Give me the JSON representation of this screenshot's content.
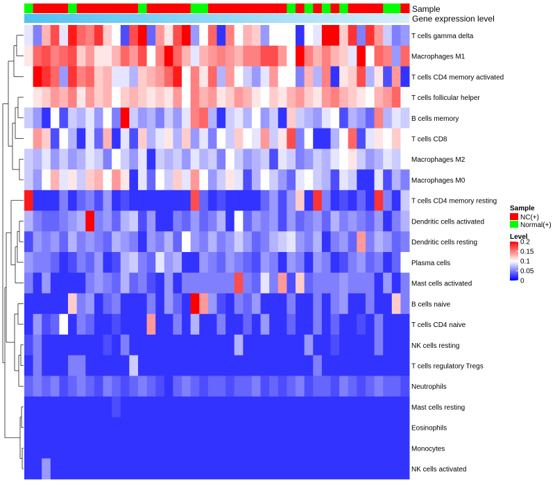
{
  "chart_data": {
    "type": "heatmap",
    "title": "",
    "annotation_tracks": [
      "Sample",
      "Gene expression level"
    ],
    "rows": [
      "T cells gamma delta",
      "Macrophages M1",
      "T cells CD4 memory activated",
      "T cells follicular helper",
      "B cells memory",
      "T cells CD8",
      "Macrophages M2",
      "Macrophages M0",
      "T cells CD4 memory resting",
      "Dendritic cells activated",
      "Dendritic cells resting",
      "Plasma cells",
      "Mast cells activated",
      "B cells naive",
      "T cells CD4 naive",
      "NK cells resting",
      "T cells regulatory  Tregs",
      "Neutrophils",
      "Mast cells resting",
      "Eosinophils",
      "Monocytes",
      "NK cells activated"
    ],
    "sample_groups": [
      "N",
      "C",
      "C",
      "C",
      "C",
      "N",
      "C",
      "C",
      "C",
      "C",
      "C",
      "C",
      "C",
      "N",
      "C",
      "C",
      "C",
      "C",
      "C",
      "N",
      "N",
      "C",
      "C",
      "C",
      "C",
      "C",
      "C",
      "C",
      "C",
      "C",
      "N",
      "C",
      "N",
      "C",
      "N",
      "C",
      "N",
      "C",
      "C",
      "C",
      "C",
      "N",
      "N",
      "C"
    ],
    "values": [
      [
        0.09,
        0.05,
        0.13,
        0.17,
        0.09,
        0.19,
        0.16,
        0.15,
        0.18,
        0.12,
        0.1,
        0.03,
        0.17,
        0.2,
        0.04,
        0.14,
        0.11,
        0.17,
        0.2,
        0.06,
        0.1,
        0.16,
        0.02,
        0.15,
        0.1,
        0.13,
        0.12,
        0.06,
        0.1,
        0.1,
        0.1,
        0.02,
        0.1,
        0.09,
        0.2,
        0.2,
        0.12,
        0.18,
        0.05,
        0.18,
        0.14,
        0.08,
        0.05,
        0.06
      ],
      [
        0.11,
        0.16,
        0.17,
        0.15,
        0.16,
        0.17,
        0.12,
        0.14,
        0.11,
        0.11,
        0.13,
        0.16,
        0.14,
        0.17,
        0.1,
        0.15,
        0.2,
        0.16,
        0.13,
        0.09,
        0.13,
        0.14,
        0.15,
        0.14,
        0.13,
        0.15,
        0.15,
        0.17,
        0.17,
        0.14,
        0.1,
        0.2,
        0.15,
        0.13,
        0.15,
        0.13,
        0.12,
        0.09,
        0.2,
        0.1,
        0.16,
        0.15,
        0.06,
        0.16
      ],
      [
        0.1,
        0.2,
        0.18,
        0.16,
        0.06,
        0.18,
        0.15,
        0.16,
        0.12,
        0.13,
        0.09,
        0.09,
        0.07,
        0.12,
        0.13,
        0.14,
        0.16,
        0.19,
        0.1,
        0.15,
        0.11,
        0.16,
        0.07,
        0.14,
        0.1,
        0.08,
        0.06,
        0.09,
        0.14,
        0.1,
        0.1,
        0.05,
        0.13,
        0.07,
        0.15,
        0.02,
        0.11,
        0.12,
        0.17,
        0.07,
        0.11,
        0.03,
        0.14,
        0.02
      ],
      [
        0.1,
        0.11,
        0.12,
        0.14,
        0.13,
        0.15,
        0.11,
        0.14,
        0.12,
        0.13,
        0.1,
        0.12,
        0.13,
        0.12,
        0.11,
        0.12,
        0.11,
        0.14,
        0.1,
        0.15,
        0.13,
        0.14,
        0.11,
        0.12,
        0.14,
        0.13,
        0.11,
        0.1,
        0.12,
        0.11,
        0.13,
        0.14,
        0.12,
        0.11,
        0.14,
        0.15,
        0.13,
        0.12,
        0.11,
        0.1,
        0.13,
        0.14,
        0.16,
        0.1
      ],
      [
        0.08,
        0.06,
        0.02,
        0.1,
        0.03,
        0.08,
        0.07,
        0.09,
        0.06,
        0.1,
        0.05,
        0.2,
        0.08,
        0.06,
        0.07,
        0.05,
        0.08,
        0.06,
        0.09,
        0.15,
        0.16,
        0.07,
        0.02,
        0.08,
        0.09,
        0.07,
        0.1,
        0.06,
        0.08,
        0.02,
        0.12,
        0.08,
        0.07,
        0.06,
        0.09,
        0.1,
        0.03,
        0.07,
        0.06,
        0.04,
        0.15,
        0.07,
        0.09,
        0.08
      ],
      [
        0.1,
        0.14,
        0.12,
        0.03,
        0.1,
        0.07,
        0.02,
        0.09,
        0.04,
        0.13,
        0.02,
        0.09,
        0.03,
        0.12,
        0.07,
        0.09,
        0.11,
        0.07,
        0.12,
        0.06,
        0.09,
        0.05,
        0.1,
        0.08,
        0.12,
        0.1,
        0.09,
        0.14,
        0.08,
        0.11,
        0.17,
        0.05,
        0.1,
        0.02,
        0.02,
        0.07,
        0.1,
        0.16,
        0.03,
        0.09,
        0.11,
        0.1,
        0.12,
        0.1
      ],
      [
        0.08,
        0.07,
        0.09,
        0.06,
        0.08,
        0.06,
        0.07,
        0.09,
        0.08,
        0.05,
        0.1,
        0.08,
        0.06,
        0.09,
        0.02,
        0.08,
        0.07,
        0.08,
        0.06,
        0.09,
        0.07,
        0.08,
        0.05,
        0.1,
        0.08,
        0.06,
        0.07,
        0.08,
        0.03,
        0.09,
        0.08,
        0.05,
        0.06,
        0.08,
        0.07,
        0.09,
        0.1,
        0.11,
        0.08,
        0.06,
        0.07,
        0.09,
        0.08,
        0.1
      ],
      [
        0.08,
        0.06,
        0.1,
        0.13,
        0.09,
        0.11,
        0.08,
        0.12,
        0.13,
        0.1,
        0.14,
        0.11,
        0.02,
        0.09,
        0.04,
        0.1,
        0.08,
        0.12,
        0.09,
        0.14,
        0.1,
        0.06,
        0.08,
        0.11,
        0.09,
        0.03,
        0.07,
        0.1,
        0.08,
        0.06,
        0.04,
        0.09,
        0.1,
        0.08,
        0.07,
        0.03,
        0.09,
        0.08,
        0.02,
        0.02,
        0.09,
        0.03,
        0.07,
        0.05
      ],
      [
        0.19,
        0.02,
        0.02,
        0.02,
        0.05,
        0.02,
        0.04,
        0.05,
        0.03,
        0.06,
        0.02,
        0.03,
        0.02,
        0.02,
        0.02,
        0.02,
        0.02,
        0.02,
        0.02,
        0.17,
        0.04,
        0.02,
        0.03,
        0.02,
        0.02,
        0.02,
        0.02,
        0.04,
        0.06,
        0.03,
        0.06,
        0.12,
        0.02,
        0.18,
        0.05,
        0.02,
        0.03,
        0.02,
        0.04,
        0.02,
        0.18,
        0.05,
        0.02,
        0.08
      ],
      [
        0.07,
        0.05,
        0.04,
        0.04,
        0.05,
        0.06,
        0.07,
        0.2,
        0.05,
        0.06,
        0.04,
        0.07,
        0.08,
        0.03,
        0.06,
        0.02,
        0.02,
        0.05,
        0.04,
        0.06,
        0.04,
        0.05,
        0.07,
        0.02,
        0.1,
        0.04,
        0.06,
        0.05,
        0.06,
        0.03,
        0.06,
        0.04,
        0.05,
        0.06,
        0.04,
        0.07,
        0.05,
        0.06,
        0.05,
        0.04,
        0.06,
        0.02,
        0.05,
        0.07
      ],
      [
        0.03,
        0.06,
        0.05,
        0.06,
        0.04,
        0.07,
        0.05,
        0.06,
        0.05,
        0.04,
        0.07,
        0.06,
        0.05,
        0.02,
        0.06,
        0.05,
        0.07,
        0.04,
        0.1,
        0.06,
        0.05,
        0.07,
        0.05,
        0.06,
        0.08,
        0.06,
        0.04,
        0.05,
        0.07,
        0.08,
        0.09,
        0.06,
        0.05,
        0.07,
        0.02,
        0.05,
        0.06,
        0.04,
        0.14,
        0.05,
        0.07,
        0.06,
        0.04,
        0.05
      ],
      [
        0.06,
        0.05,
        0.05,
        0.04,
        0.02,
        0.03,
        0.05,
        0.04,
        0.06,
        0.02,
        0.03,
        0.07,
        0.08,
        0.05,
        0.04,
        0.09,
        0.06,
        0.07,
        0.02,
        0.02,
        0.06,
        0.05,
        0.04,
        0.06,
        0.05,
        0.04,
        0.03,
        0.06,
        0.05,
        0.02,
        0.06,
        0.05,
        0.02,
        0.06,
        0.05,
        0.02,
        0.03,
        0.05,
        0.06,
        0.04,
        0.05,
        0.02,
        0.04,
        0.1
      ],
      [
        0.05,
        0.02,
        0.06,
        0.02,
        0.02,
        0.02,
        0.02,
        0.05,
        0.06,
        0.05,
        0.04,
        0.07,
        0.04,
        0.05,
        0.03,
        0.02,
        0.06,
        0.02,
        0.05,
        0.05,
        0.05,
        0.05,
        0.05,
        0.05,
        0.17,
        0.05,
        0.04,
        0.09,
        0.05,
        0.14,
        0.03,
        0.12,
        0.04,
        0.05,
        0.05,
        0.05,
        0.06,
        0.05,
        0.05,
        0.05,
        0.02,
        0.06,
        0.02,
        0.05
      ],
      [
        0.02,
        0.02,
        0.02,
        0.02,
        0.02,
        0.12,
        0.05,
        0.06,
        0.02,
        0.04,
        0.05,
        0.02,
        0.02,
        0.02,
        0.05,
        0.02,
        0.06,
        0.04,
        0.02,
        0.2,
        0.14,
        0.06,
        0.03,
        0.02,
        0.05,
        0.04,
        0.06,
        0.02,
        0.02,
        0.02,
        0.05,
        0.02,
        0.02,
        0.05,
        0.02,
        0.05,
        0.06,
        0.02,
        0.02,
        0.05,
        0.02,
        0.02,
        0.12,
        0.05
      ],
      [
        0.02,
        0.06,
        0.03,
        0.04,
        0.1,
        0.02,
        0.05,
        0.04,
        0.02,
        0.02,
        0.03,
        0.02,
        0.02,
        0.02,
        0.14,
        0.02,
        0.02,
        0.05,
        0.02,
        0.07,
        0.02,
        0.02,
        0.05,
        0.02,
        0.02,
        0.04,
        0.02,
        0.06,
        0.02,
        0.02,
        0.04,
        0.02,
        0.02,
        0.05,
        0.02,
        0.04,
        0.02,
        0.02,
        0.03,
        0.02,
        0.05,
        0.02,
        0.02,
        0.02
      ],
      [
        0.03,
        0.05,
        0.02,
        0.02,
        0.02,
        0.02,
        0.02,
        0.02,
        0.02,
        0.03,
        0.02,
        0.05,
        0.02,
        0.02,
        0.02,
        0.02,
        0.02,
        0.02,
        0.02,
        0.02,
        0.02,
        0.02,
        0.02,
        0.02,
        0.07,
        0.02,
        0.02,
        0.02,
        0.02,
        0.02,
        0.02,
        0.02,
        0.06,
        0.02,
        0.02,
        0.03,
        0.02,
        0.02,
        0.02,
        0.02,
        0.05,
        0.02,
        0.02,
        0.02
      ],
      [
        0.02,
        0.05,
        0.02,
        0.02,
        0.02,
        0.05,
        0.05,
        0.02,
        0.02,
        0.02,
        0.02,
        0.02,
        0.08,
        0.02,
        0.02,
        0.02,
        0.02,
        0.02,
        0.02,
        0.02,
        0.02,
        0.02,
        0.02,
        0.02,
        0.02,
        0.02,
        0.02,
        0.02,
        0.02,
        0.02,
        0.02,
        0.02,
        0.02,
        0.05,
        0.02,
        0.02,
        0.02,
        0.02,
        0.02,
        0.02,
        0.02,
        0.02,
        0.02,
        0.02
      ],
      [
        0.04,
        0.05,
        0.04,
        0.05,
        0.03,
        0.04,
        0.05,
        0.04,
        0.03,
        0.05,
        0.04,
        0.03,
        0.04,
        0.05,
        0.04,
        0.03,
        0.02,
        0.04,
        0.05,
        0.04,
        0.03,
        0.04,
        0.04,
        0.03,
        0.04,
        0.04,
        0.05,
        0.03,
        0.04,
        0.03,
        0.04,
        0.05,
        0.03,
        0.04,
        0.04,
        0.03,
        0.05,
        0.04,
        0.03,
        0.04,
        0.05,
        0.04,
        0.04,
        0.03
      ],
      [
        0.02,
        0.02,
        0.02,
        0.02,
        0.02,
        0.02,
        0.02,
        0.02,
        0.02,
        0.02,
        0.03,
        0.02,
        0.02,
        0.02,
        0.02,
        0.02,
        0.02,
        0.02,
        0.02,
        0.02,
        0.02,
        0.02,
        0.02,
        0.02,
        0.02,
        0.02,
        0.02,
        0.02,
        0.02,
        0.02,
        0.02,
        0.02,
        0.02,
        0.02,
        0.02,
        0.02,
        0.02,
        0.02,
        0.02,
        0.02,
        0.02,
        0.02,
        0.02,
        0.02
      ],
      [
        0.02,
        0.02,
        0.02,
        0.02,
        0.02,
        0.02,
        0.02,
        0.02,
        0.02,
        0.02,
        0.02,
        0.02,
        0.02,
        0.02,
        0.02,
        0.02,
        0.02,
        0.02,
        0.02,
        0.02,
        0.02,
        0.02,
        0.02,
        0.02,
        0.02,
        0.02,
        0.02,
        0.02,
        0.02,
        0.02,
        0.02,
        0.02,
        0.02,
        0.02,
        0.02,
        0.02,
        0.02,
        0.02,
        0.02,
        0.02,
        0.02,
        0.02,
        0.02,
        0.02
      ],
      [
        0.02,
        0.02,
        0.02,
        0.02,
        0.02,
        0.02,
        0.02,
        0.02,
        0.02,
        0.02,
        0.02,
        0.02,
        0.02,
        0.02,
        0.02,
        0.02,
        0.02,
        0.02,
        0.02,
        0.02,
        0.02,
        0.02,
        0.02,
        0.02,
        0.02,
        0.02,
        0.02,
        0.02,
        0.02,
        0.02,
        0.02,
        0.02,
        0.02,
        0.02,
        0.02,
        0.02,
        0.02,
        0.02,
        0.02,
        0.02,
        0.02,
        0.02,
        0.02,
        0.02
      ],
      [
        0.02,
        0.02,
        0.06,
        0.02,
        0.02,
        0.02,
        0.02,
        0.02,
        0.02,
        0.02,
        0.02,
        0.02,
        0.02,
        0.02,
        0.02,
        0.02,
        0.02,
        0.02,
        0.02,
        0.02,
        0.02,
        0.02,
        0.02,
        0.02,
        0.02,
        0.02,
        0.02,
        0.02,
        0.02,
        0.02,
        0.02,
        0.02,
        0.02,
        0.02,
        0.02,
        0.02,
        0.02,
        0.02,
        0.02,
        0.02,
        0.02,
        0.02,
        0.02,
        0.02
      ]
    ],
    "color_scale": {
      "min": 0,
      "mid": 0.1,
      "max": 0.2,
      "low": "#0000ff",
      "middle": "#ffffff",
      "high": "#ff0000"
    },
    "legend": {
      "position": "right",
      "sample_title": "Sample",
      "sample_items": [
        {
          "key": "C",
          "label": "NC(+)",
          "color": "#ff0000"
        },
        {
          "key": "N",
          "label": "Normal(+)",
          "color": "#00ff00"
        }
      ],
      "level_title": "Level",
      "level_ticks": [
        "0.2",
        "0.15",
        "0.1",
        "0.05",
        "0"
      ],
      "level_tick_values": [
        0.2,
        0.15,
        0.1,
        0.05,
        0
      ]
    },
    "gene_expression_bar": {
      "left": "#4fc1f0",
      "right": "#d6eef8"
    }
  }
}
